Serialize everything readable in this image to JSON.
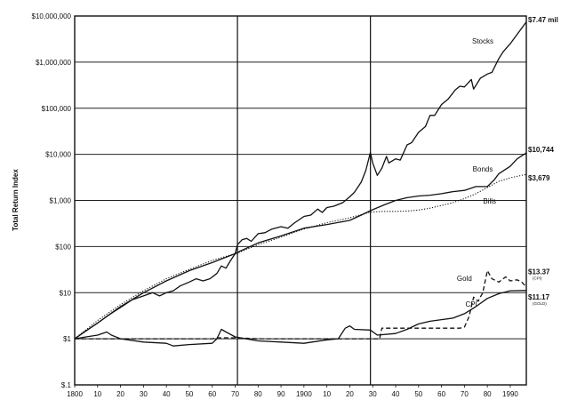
{
  "chart_data": {
    "type": "line",
    "title": "",
    "ylabel": "Total Return Index",
    "xlabel": "",
    "y_scale": "log",
    "ylim": [
      1,
      10000000
    ],
    "xlim": [
      1800,
      1997
    ],
    "grid": true,
    "x_tick_labels": [
      {
        "year": 1800,
        "label": "1800"
      },
      {
        "year": 1810,
        "label": "10"
      },
      {
        "year": 1820,
        "label": "20"
      },
      {
        "year": 1830,
        "label": "30"
      },
      {
        "year": 1840,
        "label": "40"
      },
      {
        "year": 1850,
        "label": "50"
      },
      {
        "year": 1860,
        "label": "60"
      },
      {
        "year": 1870,
        "label": "70"
      },
      {
        "year": 1880,
        "label": "80"
      },
      {
        "year": 1890,
        "label": "90"
      },
      {
        "year": 1900,
        "label": "1900"
      },
      {
        "year": 1910,
        "label": "10"
      },
      {
        "year": 1920,
        "label": "20"
      },
      {
        "year": 1930,
        "label": "30"
      },
      {
        "year": 1940,
        "label": "40"
      },
      {
        "year": 1950,
        "label": "50"
      },
      {
        "year": 1960,
        "label": "60"
      },
      {
        "year": 1970,
        "label": "70"
      },
      {
        "year": 1980,
        "label": "80"
      },
      {
        "year": 1990,
        "label": "1990"
      }
    ],
    "y_tick_labels": [
      {
        "value": 0.1,
        "label": "$.1"
      },
      {
        "value": 1,
        "label": "$1"
      },
      {
        "value": 10,
        "label": "$10"
      },
      {
        "value": 100,
        "label": "$100"
      },
      {
        "value": 1000,
        "label": "$1,000"
      },
      {
        "value": 10000,
        "label": "$10,000"
      },
      {
        "value": 100000,
        "label": "$100,000"
      },
      {
        "value": 1000000,
        "label": "$1,000,000"
      },
      {
        "value": 10000000,
        "label": "$10,000,000"
      }
    ],
    "y_range": [
      0.1,
      10000000
    ],
    "vertical_reference_years": [
      1871,
      1929
    ],
    "series": [
      {
        "name": "Stocks",
        "end_label": "$7.47 mil",
        "style": "solid",
        "points": [
          [
            1800,
            1
          ],
          [
            1805,
            1.5
          ],
          [
            1810,
            2.2
          ],
          [
            1815,
            3.3
          ],
          [
            1820,
            4.8
          ],
          [
            1825,
            7
          ],
          [
            1830,
            8.5
          ],
          [
            1834,
            10
          ],
          [
            1837,
            8.5
          ],
          [
            1840,
            10
          ],
          [
            1843,
            11
          ],
          [
            1846,
            14
          ],
          [
            1850,
            17
          ],
          [
            1853,
            20
          ],
          [
            1856,
            18
          ],
          [
            1859,
            20
          ],
          [
            1862,
            26
          ],
          [
            1864,
            38
          ],
          [
            1866,
            34
          ],
          [
            1868,
            50
          ],
          [
            1870,
            70
          ],
          [
            1871,
            110
          ],
          [
            1873,
            140
          ],
          [
            1875,
            150
          ],
          [
            1877,
            130
          ],
          [
            1880,
            190
          ],
          [
            1883,
            200
          ],
          [
            1886,
            240
          ],
          [
            1890,
            270
          ],
          [
            1893,
            250
          ],
          [
            1896,
            330
          ],
          [
            1900,
            450
          ],
          [
            1903,
            480
          ],
          [
            1906,
            650
          ],
          [
            1908,
            550
          ],
          [
            1910,
            700
          ],
          [
            1913,
            750
          ],
          [
            1917,
            900
          ],
          [
            1920,
            1200
          ],
          [
            1922,
            1500
          ],
          [
            1925,
            2500
          ],
          [
            1927,
            4500
          ],
          [
            1929,
            11000
          ],
          [
            1930,
            6500
          ],
          [
            1932,
            3500
          ],
          [
            1934,
            5000
          ],
          [
            1936,
            9000
          ],
          [
            1937,
            6500
          ],
          [
            1940,
            8000
          ],
          [
            1942,
            7500
          ],
          [
            1945,
            16000
          ],
          [
            1947,
            18000
          ],
          [
            1950,
            30000
          ],
          [
            1953,
            40000
          ],
          [
            1955,
            70000
          ],
          [
            1957,
            70000
          ],
          [
            1960,
            120000
          ],
          [
            1963,
            160000
          ],
          [
            1966,
            250000
          ],
          [
            1968,
            300000
          ],
          [
            1970,
            290000
          ],
          [
            1973,
            420000
          ],
          [
            1974,
            260000
          ],
          [
            1977,
            450000
          ],
          [
            1980,
            550000
          ],
          [
            1982,
            600000
          ],
          [
            1985,
            1200000
          ],
          [
            1987,
            1700000
          ],
          [
            1990,
            2500000
          ],
          [
            1993,
            4000000
          ],
          [
            1997,
            7470000
          ]
        ]
      },
      {
        "name": "Bonds",
        "end_label": "$10,744",
        "style": "solid",
        "points": [
          [
            1800,
            1
          ],
          [
            1810,
            2.2
          ],
          [
            1820,
            5
          ],
          [
            1830,
            10
          ],
          [
            1840,
            18
          ],
          [
            1850,
            30
          ],
          [
            1860,
            45
          ],
          [
            1870,
            70
          ],
          [
            1871,
            75
          ],
          [
            1880,
            120
          ],
          [
            1890,
            170
          ],
          [
            1900,
            250
          ],
          [
            1910,
            300
          ],
          [
            1920,
            370
          ],
          [
            1925,
            480
          ],
          [
            1929,
            600
          ],
          [
            1935,
            800
          ],
          [
            1940,
            1000
          ],
          [
            1945,
            1150
          ],
          [
            1950,
            1250
          ],
          [
            1955,
            1300
          ],
          [
            1960,
            1400
          ],
          [
            1965,
            1550
          ],
          [
            1970,
            1650
          ],
          [
            1975,
            2000
          ],
          [
            1980,
            2000
          ],
          [
            1983,
            2800
          ],
          [
            1985,
            3800
          ],
          [
            1990,
            5500
          ],
          [
            1993,
            8000
          ],
          [
            1997,
            10744
          ]
        ]
      },
      {
        "name": "Bills",
        "end_label": "$3,679",
        "style": "dotted",
        "points": [
          [
            1800,
            1
          ],
          [
            1810,
            2.5
          ],
          [
            1820,
            5.5
          ],
          [
            1830,
            11
          ],
          [
            1840,
            20
          ],
          [
            1850,
            32
          ],
          [
            1860,
            50
          ],
          [
            1870,
            70
          ],
          [
            1871,
            72
          ],
          [
            1880,
            110
          ],
          [
            1890,
            160
          ],
          [
            1900,
            240
          ],
          [
            1910,
            330
          ],
          [
            1920,
            420
          ],
          [
            1929,
            560
          ],
          [
            1935,
            580
          ],
          [
            1940,
            580
          ],
          [
            1945,
            590
          ],
          [
            1950,
            620
          ],
          [
            1955,
            680
          ],
          [
            1960,
            780
          ],
          [
            1965,
            900
          ],
          [
            1970,
            1100
          ],
          [
            1975,
            1400
          ],
          [
            1980,
            1900
          ],
          [
            1985,
            2600
          ],
          [
            1990,
            3100
          ],
          [
            1997,
            3679
          ]
        ]
      },
      {
        "name": "Gold",
        "end_label": "$13.37",
        "end_sublabel": "(CPI)",
        "style": "dashed",
        "points": [
          [
            1800,
            1
          ],
          [
            1810,
            1
          ],
          [
            1815,
            1
          ],
          [
            1820,
            1
          ],
          [
            1830,
            1
          ],
          [
            1840,
            1
          ],
          [
            1850,
            1
          ],
          [
            1860,
            1
          ],
          [
            1862,
            1.05
          ],
          [
            1866,
            1.05
          ],
          [
            1870,
            1.05
          ],
          [
            1880,
            1
          ],
          [
            1890,
            1
          ],
          [
            1900,
            1
          ],
          [
            1910,
            1
          ],
          [
            1920,
            1
          ],
          [
            1930,
            1
          ],
          [
            1933,
            1
          ],
          [
            1934,
            1.7
          ],
          [
            1940,
            1.7
          ],
          [
            1950,
            1.7
          ],
          [
            1960,
            1.7
          ],
          [
            1968,
            1.7
          ],
          [
            1970,
            1.8
          ],
          [
            1972,
            3
          ],
          [
            1974,
            8
          ],
          [
            1976,
            6.5
          ],
          [
            1978,
            10
          ],
          [
            1980,
            30
          ],
          [
            1982,
            20
          ],
          [
            1985,
            17
          ],
          [
            1988,
            22
          ],
          [
            1990,
            18
          ],
          [
            1993,
            19
          ],
          [
            1995,
            17
          ],
          [
            1997,
            13.37
          ]
        ]
      },
      {
        "name": "CPI",
        "end_label": "$11.17",
        "end_sublabel": "(GOLD)",
        "style": "solid",
        "points": [
          [
            1800,
            1
          ],
          [
            1805,
            1.1
          ],
          [
            1810,
            1.2
          ],
          [
            1814,
            1.4
          ],
          [
            1816,
            1.2
          ],
          [
            1820,
            1
          ],
          [
            1830,
            0.85
          ],
          [
            1840,
            0.8
          ],
          [
            1843,
            0.7
          ],
          [
            1850,
            0.75
          ],
          [
            1860,
            0.8
          ],
          [
            1862,
            1
          ],
          [
            1864,
            1.6
          ],
          [
            1866,
            1.4
          ],
          [
            1870,
            1.1
          ],
          [
            1880,
            0.9
          ],
          [
            1890,
            0.85
          ],
          [
            1900,
            0.8
          ],
          [
            1910,
            0.95
          ],
          [
            1915,
            1
          ],
          [
            1918,
            1.7
          ],
          [
            1920,
            1.9
          ],
          [
            1922,
            1.6
          ],
          [
            1929,
            1.55
          ],
          [
            1932,
            1.2
          ],
          [
            1940,
            1.3
          ],
          [
            1945,
            1.6
          ],
          [
            1950,
            2.1
          ],
          [
            1955,
            2.4
          ],
          [
            1960,
            2.6
          ],
          [
            1965,
            2.8
          ],
          [
            1970,
            3.5
          ],
          [
            1975,
            5
          ],
          [
            1980,
            7.5
          ],
          [
            1985,
            9.5
          ],
          [
            1990,
            11
          ],
          [
            1997,
            11.17
          ]
        ]
      }
    ],
    "series_labels": [
      {
        "name": "Stocks",
        "at_year": 1978,
        "at_value": 2500000
      },
      {
        "name": "Bonds",
        "at_year": 1978,
        "at_value": 4200
      },
      {
        "name": "Bills",
        "at_year": 1981,
        "at_value": 850
      },
      {
        "name": "Gold",
        "at_year": 1970,
        "at_value": 18
      },
      {
        "name": "CPI",
        "at_year": 1973,
        "at_value": 5
      }
    ]
  }
}
